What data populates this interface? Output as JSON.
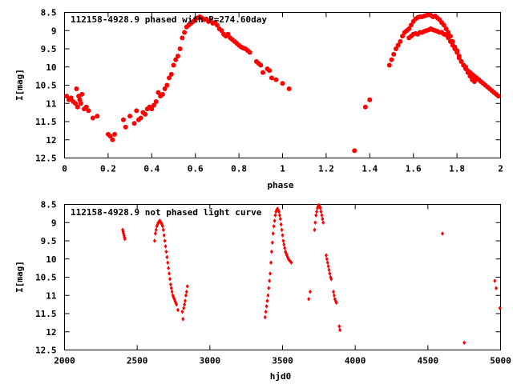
{
  "chart_data": [
    {
      "type": "scatter",
      "title": "112158-4928.9 phased with P=274.60day",
      "xlabel": "phase",
      "ylabel": "I[mag]",
      "xlim": [
        0,
        2
      ],
      "ylim": [
        12.5,
        8.5
      ],
      "y_inverted": true,
      "xticks": [
        "0",
        "0.2",
        "0.4",
        "0.6",
        "0.8",
        "1",
        "1.2",
        "1.4",
        "1.6",
        "1.8",
        "2"
      ],
      "yticks": [
        "8.5",
        "9",
        "9.5",
        "10",
        "10.5",
        "11",
        "11.5",
        "12",
        "12.5"
      ],
      "marker": "filled-circle",
      "color": "#ff0000",
      "points": [
        [
          0.01,
          10.8
        ],
        [
          0.02,
          10.9
        ],
        [
          0.03,
          10.85
        ],
        [
          0.04,
          10.95
        ],
        [
          0.05,
          11.0
        ],
        [
          0.055,
          10.6
        ],
        [
          0.06,
          11.1
        ],
        [
          0.065,
          10.8
        ],
        [
          0.07,
          10.9
        ],
        [
          0.075,
          11.0
        ],
        [
          0.08,
          10.75
        ],
        [
          0.09,
          11.15
        ],
        [
          0.1,
          11.1
        ],
        [
          0.11,
          11.2
        ],
        [
          0.13,
          11.4
        ],
        [
          0.15,
          11.35
        ],
        [
          0.2,
          11.85
        ],
        [
          0.21,
          11.9
        ],
        [
          0.22,
          12.0
        ],
        [
          0.23,
          11.85
        ],
        [
          0.27,
          11.45
        ],
        [
          0.28,
          11.65
        ],
        [
          0.3,
          11.35
        ],
        [
          0.32,
          11.55
        ],
        [
          0.33,
          11.2
        ],
        [
          0.34,
          11.45
        ],
        [
          0.35,
          11.4
        ],
        [
          0.36,
          11.25
        ],
        [
          0.37,
          11.3
        ],
        [
          0.38,
          11.15
        ],
        [
          0.39,
          11.1
        ],
        [
          0.4,
          11.15
        ],
        [
          0.41,
          11.05
        ],
        [
          0.42,
          10.95
        ],
        [
          0.43,
          10.7
        ],
        [
          0.44,
          10.8
        ],
        [
          0.45,
          10.75
        ],
        [
          0.46,
          10.6
        ],
        [
          0.47,
          10.5
        ],
        [
          0.48,
          10.3
        ],
        [
          0.49,
          10.2
        ],
        [
          0.5,
          9.95
        ],
        [
          0.51,
          9.8
        ],
        [
          0.52,
          9.7
        ],
        [
          0.53,
          9.5
        ],
        [
          0.54,
          9.2
        ],
        [
          0.55,
          9.05
        ],
        [
          0.56,
          8.9
        ],
        [
          0.57,
          8.85
        ],
        [
          0.58,
          8.8
        ],
        [
          0.59,
          8.75
        ],
        [
          0.6,
          8.7
        ],
        [
          0.61,
          8.65
        ],
        [
          0.62,
          8.62
        ],
        [
          0.63,
          8.65
        ],
        [
          0.64,
          8.7
        ],
        [
          0.65,
          8.68
        ],
        [
          0.66,
          8.75
        ],
        [
          0.67,
          8.72
        ],
        [
          0.68,
          8.8
        ],
        [
          0.69,
          8.78
        ],
        [
          0.7,
          8.85
        ],
        [
          0.71,
          8.95
        ],
        [
          0.72,
          9.0
        ],
        [
          0.73,
          9.1
        ],
        [
          0.74,
          9.15
        ],
        [
          0.75,
          9.1
        ],
        [
          0.76,
          9.2
        ],
        [
          0.77,
          9.25
        ],
        [
          0.78,
          9.3
        ],
        [
          0.79,
          9.35
        ],
        [
          0.8,
          9.4
        ],
        [
          0.81,
          9.45
        ],
        [
          0.82,
          9.48
        ],
        [
          0.83,
          9.5
        ],
        [
          0.84,
          9.55
        ],
        [
          0.85,
          9.6
        ],
        [
          0.88,
          9.85
        ],
        [
          0.89,
          9.9
        ],
        [
          0.9,
          9.95
        ],
        [
          0.91,
          10.15
        ],
        [
          0.93,
          10.05
        ],
        [
          0.94,
          10.1
        ],
        [
          0.95,
          10.3
        ],
        [
          0.97,
          10.35
        ],
        [
          1.0,
          10.45
        ],
        [
          1.03,
          10.6
        ],
        [
          1.33,
          12.3
        ],
        [
          1.38,
          11.1
        ],
        [
          1.4,
          10.9
        ],
        [
          1.49,
          9.95
        ],
        [
          1.5,
          9.8
        ],
        [
          1.51,
          9.65
        ],
        [
          1.52,
          9.5
        ],
        [
          1.53,
          9.4
        ],
        [
          1.54,
          9.3
        ],
        [
          1.55,
          9.15
        ],
        [
          1.56,
          9.05
        ],
        [
          1.57,
          9.0
        ],
        [
          1.58,
          8.95
        ],
        [
          1.59,
          8.85
        ],
        [
          1.6,
          8.75
        ],
        [
          1.61,
          8.68
        ],
        [
          1.62,
          8.64
        ],
        [
          1.63,
          8.62
        ],
        [
          1.64,
          8.62
        ],
        [
          1.65,
          8.6
        ],
        [
          1.66,
          8.58
        ],
        [
          1.67,
          8.56
        ],
        [
          1.68,
          8.58
        ],
        [
          1.69,
          8.62
        ],
        [
          1.7,
          8.6
        ],
        [
          1.71,
          8.65
        ],
        [
          1.72,
          8.7
        ],
        [
          1.73,
          8.78
        ],
        [
          1.74,
          8.85
        ],
        [
          1.75,
          8.95
        ],
        [
          1.76,
          9.05
        ],
        [
          1.77,
          9.15
        ],
        [
          1.78,
          9.3
        ],
        [
          1.79,
          9.45
        ],
        [
          1.8,
          9.55
        ],
        [
          1.81,
          9.7
        ],
        [
          1.82,
          9.85
        ],
        [
          1.83,
          9.95
        ],
        [
          1.84,
          10.0
        ],
        [
          1.85,
          10.1
        ],
        [
          1.86,
          10.15
        ],
        [
          1.87,
          10.2
        ],
        [
          1.88,
          10.25
        ],
        [
          1.89,
          10.3
        ],
        [
          1.9,
          10.35
        ],
        [
          1.91,
          10.4
        ],
        [
          1.92,
          10.45
        ],
        [
          1.93,
          10.5
        ],
        [
          1.94,
          10.55
        ],
        [
          1.95,
          10.6
        ],
        [
          1.96,
          10.65
        ],
        [
          1.97,
          10.7
        ],
        [
          1.98,
          10.75
        ],
        [
          1.99,
          10.8
        ],
        [
          1.58,
          9.2
        ],
        [
          1.59,
          9.15
        ],
        [
          1.6,
          9.1
        ],
        [
          1.61,
          9.08
        ],
        [
          1.62,
          9.1
        ],
        [
          1.63,
          9.05
        ],
        [
          1.64,
          9.05
        ],
        [
          1.65,
          9.02
        ],
        [
          1.66,
          9.0
        ],
        [
          1.67,
          8.98
        ],
        [
          1.68,
          8.95
        ],
        [
          1.69,
          8.98
        ],
        [
          1.7,
          9.0
        ],
        [
          1.71,
          9.02
        ],
        [
          1.72,
          9.05
        ],
        [
          1.73,
          9.05
        ],
        [
          1.74,
          9.1
        ],
        [
          1.75,
          9.12
        ],
        [
          1.76,
          9.2
        ],
        [
          1.77,
          9.3
        ],
        [
          1.78,
          9.4
        ],
        [
          1.79,
          9.5
        ],
        [
          1.8,
          9.6
        ],
        [
          1.81,
          9.75
        ],
        [
          1.82,
          9.85
        ],
        [
          1.83,
          9.95
        ],
        [
          1.84,
          10.05
        ],
        [
          1.85,
          10.15
        ],
        [
          1.86,
          10.25
        ],
        [
          1.87,
          10.35
        ],
        [
          1.88,
          10.4
        ]
      ]
    },
    {
      "type": "scatter",
      "title": "112158-4928.9 not phased light curve",
      "xlabel": "hjd0",
      "ylabel": "I[mag]",
      "xlim": [
        2000,
        5000
      ],
      "ylim": [
        12.5,
        8.5
      ],
      "y_inverted": true,
      "xticks": [
        "2000",
        "2500",
        "3000",
        "3500",
        "4000",
        "4500",
        "5000"
      ],
      "yticks": [
        "8.5",
        "9",
        "9.5",
        "10",
        "10.5",
        "11",
        "11.5",
        "12",
        "12.5"
      ],
      "marker": "small-diamond",
      "color": "#ff0000",
      "points": [
        [
          2400,
          9.2
        ],
        [
          2403,
          9.25
        ],
        [
          2406,
          9.3
        ],
        [
          2409,
          9.35
        ],
        [
          2412,
          9.4
        ],
        [
          2415,
          9.45
        ],
        [
          2620,
          9.5
        ],
        [
          2625,
          9.3
        ],
        [
          2630,
          9.2
        ],
        [
          2635,
          9.1
        ],
        [
          2640,
          9.05
        ],
        [
          2645,
          9.0
        ],
        [
          2650,
          8.98
        ],
        [
          2655,
          8.95
        ],
        [
          2660,
          8.98
        ],
        [
          2665,
          9.0
        ],
        [
          2670,
          9.05
        ],
        [
          2675,
          9.1
        ],
        [
          2680,
          9.2
        ],
        [
          2685,
          9.35
        ],
        [
          2690,
          9.5
        ],
        [
          2695,
          9.65
        ],
        [
          2700,
          9.8
        ],
        [
          2705,
          9.95
        ],
        [
          2710,
          10.1
        ],
        [
          2715,
          10.25
        ],
        [
          2720,
          10.4
        ],
        [
          2725,
          10.55
        ],
        [
          2730,
          10.7
        ],
        [
          2735,
          10.8
        ],
        [
          2740,
          10.9
        ],
        [
          2745,
          11.0
        ],
        [
          2750,
          11.05
        ],
        [
          2755,
          11.1
        ],
        [
          2760,
          11.15
        ],
        [
          2765,
          11.2
        ],
        [
          2770,
          11.25
        ],
        [
          2780,
          11.4
        ],
        [
          2810,
          11.45
        ],
        [
          2815,
          11.65
        ],
        [
          2820,
          11.35
        ],
        [
          2825,
          11.25
        ],
        [
          2830,
          11.15
        ],
        [
          2835,
          11.0
        ],
        [
          2840,
          10.9
        ],
        [
          2845,
          10.75
        ],
        [
          3380,
          11.6
        ],
        [
          3385,
          11.45
        ],
        [
          3390,
          11.3
        ],
        [
          3395,
          11.15
        ],
        [
          3400,
          11.0
        ],
        [
          3405,
          10.8
        ],
        [
          3410,
          10.6
        ],
        [
          3415,
          10.4
        ],
        [
          3420,
          10.1
        ],
        [
          3425,
          9.8
        ],
        [
          3430,
          9.55
        ],
        [
          3435,
          9.3
        ],
        [
          3440,
          9.1
        ],
        [
          3445,
          8.95
        ],
        [
          3450,
          8.8
        ],
        [
          3455,
          8.7
        ],
        [
          3460,
          8.65
        ],
        [
          3465,
          8.62
        ],
        [
          3470,
          8.65
        ],
        [
          3475,
          8.7
        ],
        [
          3480,
          8.8
        ],
        [
          3485,
          8.9
        ],
        [
          3490,
          9.05
        ],
        [
          3495,
          9.2
        ],
        [
          3500,
          9.35
        ],
        [
          3505,
          9.5
        ],
        [
          3510,
          9.6
        ],
        [
          3515,
          9.7
        ],
        [
          3520,
          9.8
        ],
        [
          3525,
          9.85
        ],
        [
          3530,
          9.9
        ],
        [
          3535,
          9.95
        ],
        [
          3540,
          10.0
        ],
        [
          3550,
          10.05
        ],
        [
          3560,
          10.1
        ],
        [
          3680,
          11.1
        ],
        [
          3690,
          10.9
        ],
        [
          3720,
          9.2
        ],
        [
          3725,
          9.0
        ],
        [
          3730,
          8.8
        ],
        [
          3735,
          8.7
        ],
        [
          3740,
          8.6
        ],
        [
          3745,
          8.55
        ],
        [
          3750,
          8.52
        ],
        [
          3755,
          8.55
        ],
        [
          3760,
          8.6
        ],
        [
          3765,
          8.7
        ],
        [
          3770,
          8.8
        ],
        [
          3775,
          8.9
        ],
        [
          3780,
          9.0
        ],
        [
          3800,
          9.9
        ],
        [
          3805,
          10.0
        ],
        [
          3810,
          10.1
        ],
        [
          3815,
          10.2
        ],
        [
          3820,
          10.3
        ],
        [
          3825,
          10.4
        ],
        [
          3830,
          10.5
        ],
        [
          3835,
          10.55
        ],
        [
          3850,
          10.9
        ],
        [
          3855,
          11.0
        ],
        [
          3860,
          11.1
        ],
        [
          3865,
          11.15
        ],
        [
          3870,
          11.2
        ],
        [
          3890,
          11.85
        ],
        [
          3895,
          11.95
        ],
        [
          4600,
          9.3
        ],
        [
          4750,
          12.3
        ],
        [
          4960,
          10.6
        ],
        [
          4970,
          10.8
        ],
        [
          4995,
          11.35
        ]
      ]
    }
  ]
}
